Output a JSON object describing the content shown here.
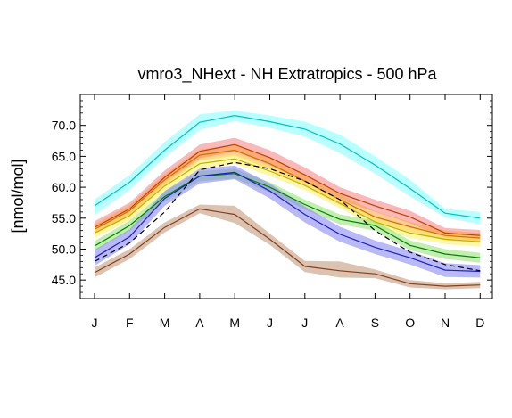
{
  "chart_data": {
    "type": "line",
    "title": "vmro3_NHext - NH Extratropics - 500 hPa",
    "xlabel": "",
    "ylabel": "[nmol/mol]",
    "categories": [
      "J",
      "F",
      "M",
      "A",
      "M",
      "J",
      "J",
      "A",
      "S",
      "O",
      "N",
      "D"
    ],
    "ylim": [
      42.0,
      75.0
    ],
    "yticks": [
      "45.0",
      "50.0",
      "55.0",
      "60.0",
      "65.0",
      "70.0"
    ],
    "grid": false,
    "legend": "none",
    "series": [
      {
        "color": "#00c0c0",
        "band_color": "#80ffff",
        "values": [
          57.0,
          60.8,
          66.0,
          70.5,
          71.6,
          70.6,
          69.4,
          67.0,
          63.6,
          59.8,
          55.8,
          55.0
        ],
        "lower": [
          55.5,
          59.6,
          64.8,
          69.3,
          70.7,
          69.6,
          68.2,
          65.5,
          62.2,
          58.5,
          55.1,
          54.0
        ],
        "upper": [
          58.0,
          62.0,
          67.3,
          71.8,
          72.4,
          71.6,
          70.6,
          68.5,
          65.0,
          61.2,
          56.5,
          56.0
        ]
      },
      {
        "color": "#c04000",
        "band_color": "#f08080",
        "values": [
          53.5,
          56.5,
          61.6,
          65.8,
          66.9,
          64.8,
          62.0,
          59.0,
          57.0,
          55.2,
          52.6,
          52.2
        ],
        "lower": [
          52.5,
          55.5,
          60.5,
          64.7,
          65.8,
          63.6,
          60.8,
          58.0,
          56.0,
          54.2,
          51.8,
          51.3
        ],
        "upper": [
          54.5,
          57.5,
          62.7,
          66.9,
          68.0,
          66.0,
          63.2,
          60.0,
          58.0,
          56.2,
          53.4,
          53.1
        ]
      },
      {
        "color": "#d07000",
        "band_color": "#ffa040",
        "values": [
          53.2,
          56.2,
          61.2,
          65.2,
          66.0,
          63.8,
          61.0,
          58.0,
          55.2,
          53.6,
          52.2,
          51.8
        ],
        "lower": [
          52.4,
          55.3,
          60.3,
          64.3,
          65.1,
          62.9,
          60.1,
          57.1,
          54.3,
          52.8,
          51.4,
          51.0
        ],
        "upper": [
          54.0,
          57.1,
          62.1,
          66.1,
          66.9,
          64.7,
          61.9,
          58.9,
          56.1,
          54.4,
          53.0,
          52.6
        ]
      },
      {
        "color": "#c0b000",
        "band_color": "#fff060",
        "values": [
          52.6,
          55.4,
          60.2,
          63.8,
          64.6,
          62.6,
          60.3,
          57.4,
          54.4,
          52.6,
          51.6,
          51.2
        ],
        "lower": [
          51.8,
          54.6,
          59.4,
          63.0,
          63.8,
          61.8,
          59.5,
          56.6,
          53.6,
          51.8,
          50.8,
          50.4
        ],
        "upper": [
          53.4,
          56.2,
          61.0,
          64.6,
          65.4,
          63.4,
          61.1,
          58.2,
          55.2,
          53.4,
          52.4,
          52.0
        ]
      },
      {
        "color": "#008000",
        "band_color": "#90e070",
        "values": [
          50.5,
          53.8,
          58.5,
          61.8,
          62.2,
          60.0,
          57.2,
          54.8,
          53.8,
          50.6,
          49.2,
          48.6
        ],
        "lower": [
          49.7,
          53.0,
          57.7,
          61.0,
          61.4,
          59.2,
          56.4,
          54.0,
          53.0,
          49.8,
          48.4,
          47.8
        ],
        "upper": [
          51.3,
          54.6,
          59.3,
          62.6,
          63.0,
          60.8,
          58.0,
          55.6,
          54.6,
          51.4,
          50.0,
          49.4
        ]
      },
      {
        "color": "#2020c0",
        "band_color": "#8080f0",
        "values": [
          48.6,
          52.0,
          58.2,
          61.8,
          62.4,
          59.4,
          55.6,
          52.4,
          50.3,
          48.6,
          46.6,
          46.4
        ],
        "lower": [
          47.3,
          50.8,
          57.0,
          60.6,
          61.3,
          58.2,
          54.3,
          51.2,
          49.2,
          47.5,
          45.5,
          45.4
        ],
        "upper": [
          49.9,
          53.2,
          59.4,
          63.0,
          63.5,
          60.6,
          56.9,
          53.6,
          51.4,
          49.7,
          47.7,
          47.4
        ]
      },
      {
        "color": "#804020",
        "band_color": "#c09070",
        "values": [
          46.2,
          49.2,
          53.5,
          56.5,
          55.6,
          51.6,
          47.2,
          46.5,
          46.0,
          44.4,
          44.0,
          44.2
        ],
        "lower": [
          45.4,
          48.4,
          52.7,
          55.8,
          54.2,
          50.7,
          46.3,
          45.4,
          45.3,
          43.8,
          43.5,
          43.7
        ],
        "upper": [
          47.0,
          50.0,
          54.3,
          57.2,
          57.0,
          52.5,
          48.1,
          48.0,
          46.7,
          45.0,
          44.5,
          44.7
        ]
      },
      {
        "color": "#000000",
        "dash": true,
        "values": [
          48.0,
          51.0,
          56.0,
          62.8,
          64.0,
          63.0,
          61.0,
          58.0,
          53.0,
          49.5,
          47.5,
          46.5
        ]
      }
    ]
  }
}
